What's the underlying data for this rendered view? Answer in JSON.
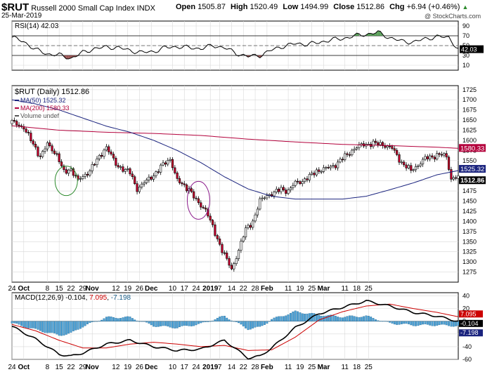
{
  "header": {
    "symbol": "$RUT",
    "name": "Russell 2000 Small Cap Index",
    "exchange": "INDX",
    "date": "25-Mar-2019",
    "open_label": "Open",
    "open": "1505.87",
    "high_label": "High",
    "high": "1520.49",
    "low_label": "Low",
    "low": "1494.99",
    "close_label": "Close",
    "close": "1512.86",
    "chg_label": "Chg",
    "chg": "+6.94 (+0.46%)",
    "watermark": "@ StockCharts.com",
    "up_arrow": "▲"
  },
  "chart_data": [
    {
      "type": "line",
      "name": "rsi_panel",
      "title": "RSI(14) 42.03",
      "ylim": [
        0,
        100
      ],
      "yticks": [
        "90",
        "70",
        "50",
        "30",
        "10"
      ],
      "ref_lines": [
        70,
        30
      ],
      "last_label": "42.03",
      "x_index": [
        0,
        5,
        10,
        15,
        20,
        25,
        30,
        35,
        40,
        45,
        50,
        55,
        60,
        65,
        70,
        75,
        80,
        85,
        90,
        95,
        100,
        105,
        110,
        115,
        120,
        125,
        130,
        135,
        140,
        145,
        150,
        155,
        160,
        165,
        170,
        175,
        180,
        185,
        189
      ],
      "values": [
        67,
        58,
        42,
        33,
        31,
        24,
        36,
        44,
        47,
        46,
        40,
        36,
        38,
        46,
        48,
        46,
        44,
        50,
        46,
        34,
        28,
        30,
        41,
        49,
        54,
        53,
        56,
        62,
        64,
        70,
        73,
        77,
        66,
        59,
        57,
        64,
        68,
        67,
        42
      ]
    },
    {
      "type": "candlestick",
      "name": "price_panel",
      "title": "$RUT (Daily) 1512.86",
      "ylim": [
        1250,
        1735
      ],
      "yticks": [
        "1725",
        "1700",
        "1675",
        "1650",
        "1625",
        "1600",
        "1575",
        "1550",
        "1525",
        "1500",
        "1475",
        "1450",
        "1425",
        "1400",
        "1375",
        "1350",
        "1325",
        "1300",
        "1275"
      ],
      "legend": [
        {
          "name": "MA(50)",
          "value": "1525.32",
          "color": "#1a237e"
        },
        {
          "name": "MA(200)",
          "value": "1580.33",
          "color": "#b3003b"
        },
        {
          "name": "Volume",
          "value": "undef",
          "color": "#555555"
        }
      ],
      "last_values": [
        {
          "label": "1580.33",
          "value": 1580.33,
          "bg": "#b3003b"
        },
        {
          "label": "1525.32",
          "value": 1525.32,
          "bg": "#1a237e"
        },
        {
          "label": "1512.86",
          "value": 1512.86,
          "bg": "#000000"
        }
      ],
      "price_key_x": [
        0,
        5,
        8,
        12,
        15,
        19,
        22,
        25,
        28,
        32,
        36,
        40,
        44,
        50,
        53,
        57,
        61,
        64,
        67,
        70,
        75,
        78,
        82,
        86,
        89,
        93,
        96,
        99,
        102,
        105,
        108,
        111,
        114,
        117,
        120,
        123,
        126,
        129,
        133,
        137,
        141,
        145,
        149,
        153,
        157,
        161,
        165,
        169,
        172,
        175,
        178,
        181,
        184,
        186,
        189
      ],
      "price_key_y": [
        1645,
        1632,
        1600,
        1560,
        1590,
        1565,
        1520,
        1530,
        1500,
        1520,
        1550,
        1585,
        1540,
        1520,
        1480,
        1500,
        1520,
        1540,
        1555,
        1500,
        1480,
        1450,
        1430,
        1370,
        1330,
        1280,
        1330,
        1380,
        1400,
        1450,
        1465,
        1470,
        1480,
        1475,
        1495,
        1500,
        1510,
        1525,
        1530,
        1540,
        1560,
        1580,
        1590,
        1592,
        1590,
        1580,
        1545,
        1525,
        1540,
        1555,
        1560,
        1565,
        1560,
        1505,
        1512.86
      ],
      "ma50_key_x": [
        0,
        10,
        20,
        30,
        40,
        50,
        60,
        70,
        80,
        90,
        100,
        110,
        120,
        130,
        140,
        150,
        160,
        170,
        180,
        189
      ],
      "ma50_key_y": [
        1700,
        1690,
        1675,
        1655,
        1635,
        1620,
        1600,
        1575,
        1545,
        1510,
        1480,
        1462,
        1455,
        1455,
        1455,
        1462,
        1478,
        1495,
        1515,
        1525.32
      ],
      "ma200_key_x": [
        0,
        20,
        40,
        60,
        80,
        100,
        120,
        140,
        160,
        180,
        189
      ],
      "ma200_key_y": [
        1636,
        1625,
        1620,
        1617,
        1612,
        1603,
        1596,
        1590,
        1587,
        1583,
        1580.33
      ],
      "circles": [
        {
          "label": "green-circle",
          "x_index": 23,
          "y_value": 1500,
          "color": "#2e8b2e"
        },
        {
          "label": "purple-circle",
          "x_index": 79,
          "y_value": 1452,
          "color": "#8b1a8b"
        }
      ]
    },
    {
      "type": "line",
      "name": "macd_panel",
      "title": "MACD(12,26,9) -0.104, 7.095, -7.198",
      "title_parts": {
        "prefix": "MACD(12,26,9) ",
        "macd": "-0.104",
        "signal": "7.095",
        "hist": "-7.198"
      },
      "ylim": [
        -60,
        45
      ],
      "yticks": [
        "40",
        "20",
        "0",
        "-20",
        "-40",
        "-60"
      ],
      "last_labels": [
        {
          "label": "7.095",
          "value": 7.095,
          "bg": "#cc0000"
        },
        {
          "label": "-0.104",
          "value": -0.104,
          "bg": "#000000"
        },
        {
          "label": "-7.198",
          "value": -7.198,
          "bg": "#1a237e"
        }
      ],
      "macd_key_x": [
        0,
        10,
        20,
        25,
        30,
        40,
        50,
        60,
        70,
        80,
        90,
        100,
        105,
        110,
        120,
        130,
        140,
        150,
        160,
        170,
        180,
        189
      ],
      "macd_key_y": [
        -8,
        -28,
        -52,
        -55,
        -50,
        -36,
        -30,
        -40,
        -46,
        -44,
        -30,
        -58,
        -55,
        -42,
        -10,
        12,
        22,
        32,
        24,
        14,
        8,
        -0.104
      ],
      "signal_key_x": [
        0,
        10,
        20,
        30,
        40,
        50,
        60,
        70,
        80,
        90,
        100,
        110,
        120,
        130,
        140,
        150,
        160,
        170,
        180,
        189
      ],
      "signal_key_y": [
        -5,
        -15,
        -30,
        -42,
        -42,
        -36,
        -33,
        -36,
        -40,
        -38,
        -46,
        -45,
        -25,
        2,
        15,
        24,
        27,
        20,
        14,
        7.095
      ]
    }
  ],
  "x_axis": {
    "labels": [
      {
        "text": "24",
        "i": 0,
        "bold": false
      },
      {
        "text": "Oct",
        "i": 5,
        "bold": true
      },
      {
        "text": "8",
        "i": 15,
        "bold": false
      },
      {
        "text": "15",
        "i": 20,
        "bold": false
      },
      {
        "text": "22",
        "i": 25,
        "bold": false
      },
      {
        "text": "29",
        "i": 30,
        "bold": false
      },
      {
        "text": "Nov",
        "i": 34,
        "bold": true
      },
      {
        "text": "12",
        "i": 44,
        "bold": false
      },
      {
        "text": "19",
        "i": 49,
        "bold": false
      },
      {
        "text": "26",
        "i": 54,
        "bold": false
      },
      {
        "text": "Dec",
        "i": 59,
        "bold": true
      },
      {
        "text": "10",
        "i": 68,
        "bold": false
      },
      {
        "text": "17",
        "i": 73,
        "bold": false
      },
      {
        "text": "24",
        "i": 78,
        "bold": false
      },
      {
        "text": "2019",
        "i": 84,
        "bold": true
      },
      {
        "text": "7",
        "i": 88,
        "bold": false
      },
      {
        "text": "14",
        "i": 93,
        "bold": false
      },
      {
        "text": "22",
        "i": 98,
        "bold": false
      },
      {
        "text": "28",
        "i": 103,
        "bold": false
      },
      {
        "text": "Feb",
        "i": 108,
        "bold": true
      },
      {
        "text": "11",
        "i": 117,
        "bold": false
      },
      {
        "text": "19",
        "i": 122,
        "bold": false
      },
      {
        "text": "25",
        "i": 127,
        "bold": false
      },
      {
        "text": "Mar",
        "i": 132,
        "bold": true
      },
      {
        "text": "11",
        "i": 141,
        "bold": false
      },
      {
        "text": "18",
        "i": 146,
        "bold": false
      },
      {
        "text": "25",
        "i": 151,
        "bold": false
      }
    ]
  },
  "colors": {
    "up_candle": "#ffffff",
    "down_candle": "#c8002d",
    "rsi_line": "#000000",
    "rsi_overbought_fill": "#3f8f3f",
    "rsi_oversold_fill": "#8b3a3a",
    "macd_line": "#000000",
    "signal_line": "#cc0000",
    "histogram": "#4a9fd4",
    "grid": "#d8d8d8"
  }
}
